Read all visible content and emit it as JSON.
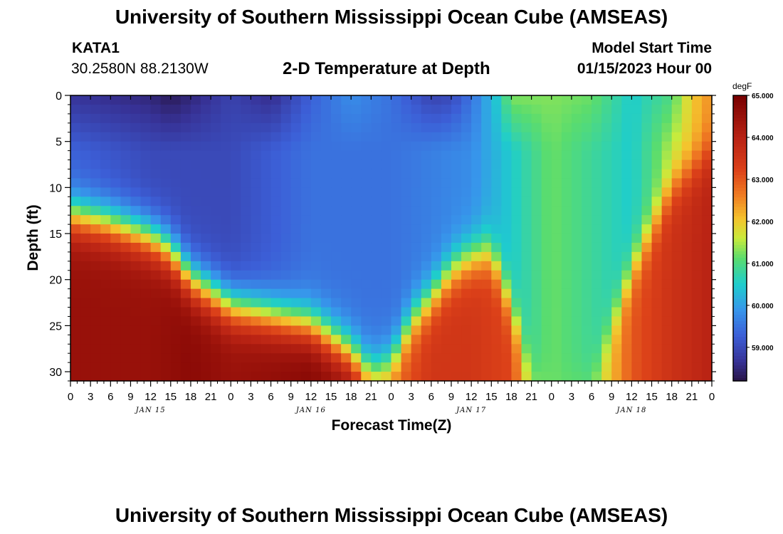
{
  "header": {
    "title": "University of Southern Mississippi Ocean Cube (AMSEAS)",
    "station_id": "KATA1",
    "station_coords": "30.2580N  88.2130W",
    "plot_title": "2-D Temperature at Depth",
    "model_start_label": "Model Start Time",
    "model_start_value": "01/15/2023 Hour 00"
  },
  "footer": {
    "title": "University of Southern Mississippi Ocean Cube (AMSEAS)"
  },
  "chart_data": {
    "type": "heatmap",
    "title": "2-D Temperature at Depth",
    "xlabel": "Forecast Time(Z)",
    "ylabel": "Depth (ft)",
    "x_unit": "hours since model start",
    "xlim": [
      0,
      96
    ],
    "ylim": [
      0,
      31
    ],
    "y_inverted": true,
    "x_ticks": [
      0,
      3,
      6,
      9,
      12,
      15,
      18,
      21,
      24,
      27,
      30,
      33,
      36,
      39,
      42,
      45,
      48,
      51,
      54,
      57,
      60,
      63,
      66,
      69,
      72,
      75,
      78,
      81,
      84,
      87,
      90,
      93,
      96
    ],
    "x_tick_labels": [
      "0",
      "3",
      "6",
      "9",
      "12",
      "15",
      "18",
      "21",
      "0",
      "3",
      "6",
      "9",
      "12",
      "15",
      "18",
      "21",
      "0",
      "3",
      "6",
      "9",
      "12",
      "15",
      "18",
      "21",
      "0",
      "3",
      "6",
      "9",
      "12",
      "15",
      "18",
      "21",
      "0"
    ],
    "day_labels": [
      {
        "hour": 12,
        "label": "JAN 15"
      },
      {
        "hour": 36,
        "label": "JAN 16"
      },
      {
        "hour": 60,
        "label": "JAN 17"
      },
      {
        "hour": 84,
        "label": "JAN 18"
      }
    ],
    "y_ticks": [
      0,
      5,
      10,
      15,
      20,
      25,
      30
    ],
    "colorbar": {
      "unit": "degF",
      "min": 58.2,
      "max": 65.0,
      "ticks": [
        59.0,
        60.0,
        61.0,
        62.0,
        63.0,
        64.0,
        65.0
      ],
      "tick_labels": [
        "59.000",
        "60.000",
        "61.000",
        "62.000",
        "63.000",
        "64.000",
        "65.000"
      ]
    },
    "thermocline_depth_ft": {
      "hours": [
        0,
        6,
        12,
        15,
        18,
        24,
        30,
        36,
        42,
        45,
        48,
        51,
        54,
        57,
        60,
        63,
        66,
        69,
        72,
        78,
        84,
        90,
        96
      ],
      "depths": [
        13,
        14,
        15.5,
        17,
        20,
        23,
        24,
        25,
        28,
        30,
        29,
        24.5,
        22,
        19,
        17.5,
        17,
        23,
        30,
        31,
        31,
        19,
        10,
        6
      ]
    },
    "surface_layer_degF": {
      "hours": [
        0,
        6,
        12,
        15,
        18,
        24,
        30,
        36,
        42,
        48,
        54,
        57,
        60,
        64,
        66,
        72,
        78,
        84,
        90,
        93,
        96
      ],
      "values": [
        58.7,
        58.6,
        58.5,
        58.3,
        58.5,
        58.9,
        58.6,
        59.3,
        59.8,
        59.5,
        58.9,
        59.0,
        59.5,
        60.5,
        61.3,
        61.3,
        61.2,
        60.5,
        61.0,
        62.0,
        62.5
      ]
    },
    "mid_layer_degF": {
      "hours": [
        0,
        12,
        24,
        36,
        48,
        60,
        66,
        72,
        84,
        90,
        96
      ],
      "values": [
        59.3,
        59.0,
        59.0,
        59.5,
        59.5,
        59.8,
        60.5,
        61.2,
        60.5,
        61.5,
        62.5
      ]
    },
    "bottom_layer_degF": {
      "hours": [
        0,
        12,
        18,
        24,
        30,
        36,
        42,
        45,
        48,
        54,
        60,
        66,
        69,
        72,
        78,
        84,
        90,
        96
      ],
      "values": [
        64.5,
        64.5,
        64.7,
        64.5,
        64.6,
        64.8,
        64.5,
        63.0,
        62.8,
        63.5,
        63.5,
        63.2,
        61.5,
        61.2,
        61.3,
        63.0,
        63.6,
        64.0
      ]
    }
  }
}
